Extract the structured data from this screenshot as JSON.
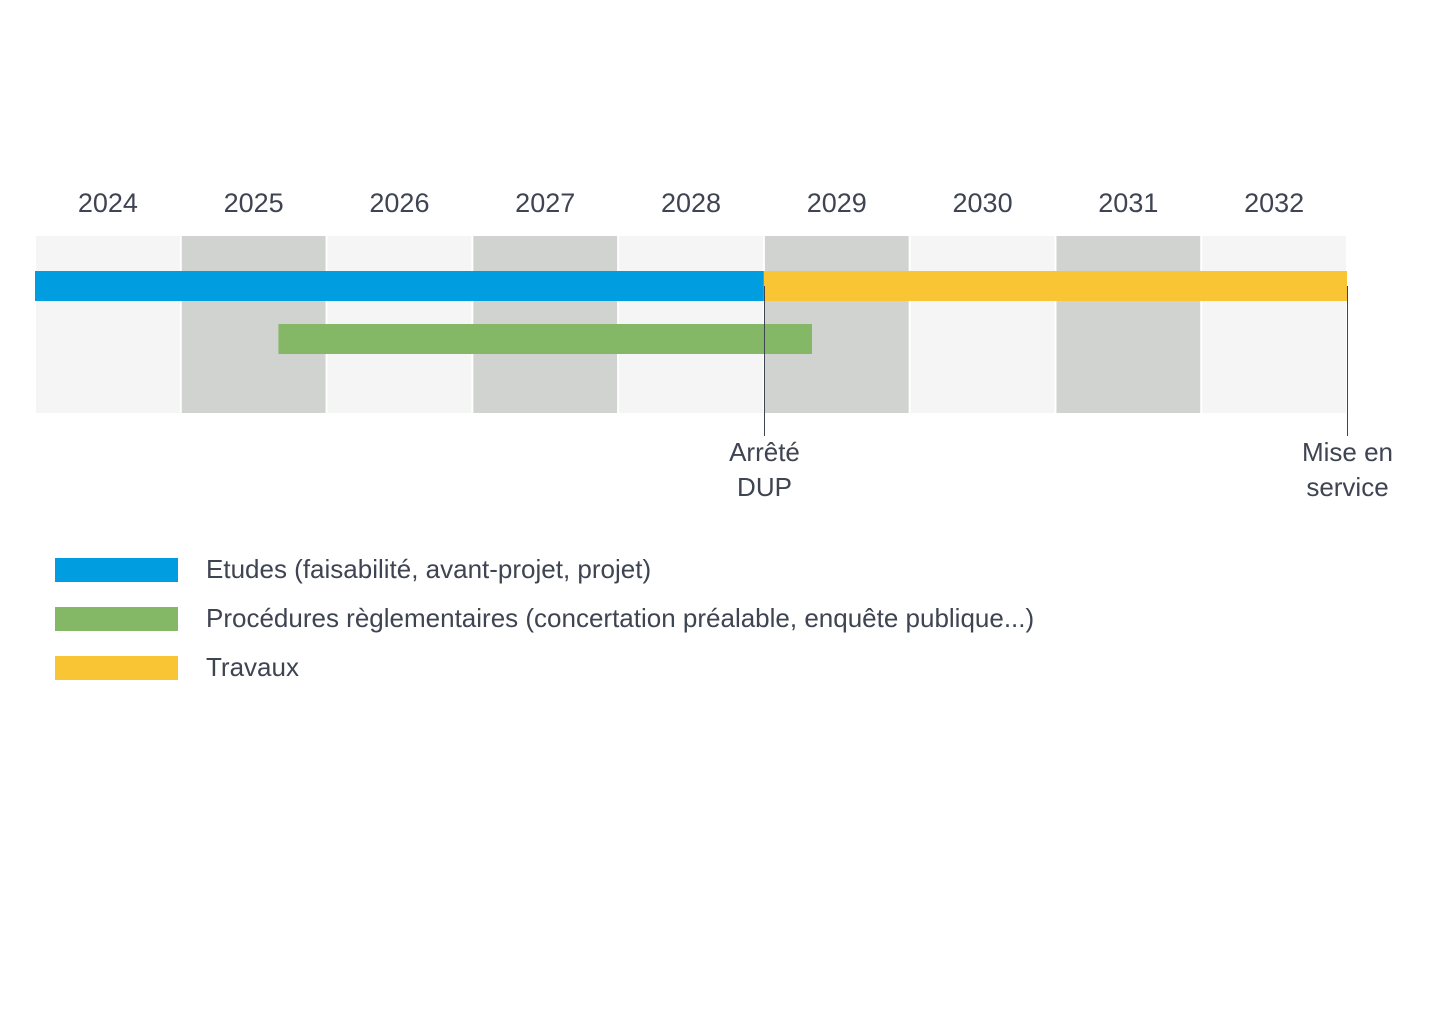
{
  "chart_data": {
    "type": "gantt",
    "years": [
      "2024",
      "2025",
      "2026",
      "2027",
      "2028",
      "2029",
      "2030",
      "2031",
      "2032"
    ],
    "x_range": [
      2024.0,
      2033.0
    ],
    "tasks": [
      {
        "name": "Etudes (faisabilité, avant-projet, projet)",
        "start": 2024.0,
        "end": 2029.0,
        "color": "#009ee0",
        "row": 0
      },
      {
        "name": "Travaux",
        "start": 2029.0,
        "end": 2033.0,
        "color": "#fac535",
        "row": 0
      },
      {
        "name": "Procédures règlementaires (concertation préalable, enquête publique...)",
        "start": 2025.67,
        "end": 2029.33,
        "color": "#84b866",
        "row": 1
      }
    ],
    "milestones": [
      {
        "lines": [
          "Arrêté",
          "DUP"
        ],
        "x": 2029.0
      },
      {
        "lines": [
          "Mise en",
          "service"
        ],
        "x": 2033.0
      }
    ],
    "colors": {
      "band_light": "#f5f5f5",
      "band_dark": "#d1d3d0",
      "text": "#3f4452",
      "milestone_line": "#3f4452"
    }
  },
  "legend": [
    {
      "label": "Etudes (faisabilité, avant-projet, projet)",
      "color": "#009ee0"
    },
    {
      "label": "Procédures règlementaires (concertation préalable, enquête publique...)",
      "color": "#84b866"
    },
    {
      "label": "Travaux",
      "color": "#fac535"
    }
  ]
}
